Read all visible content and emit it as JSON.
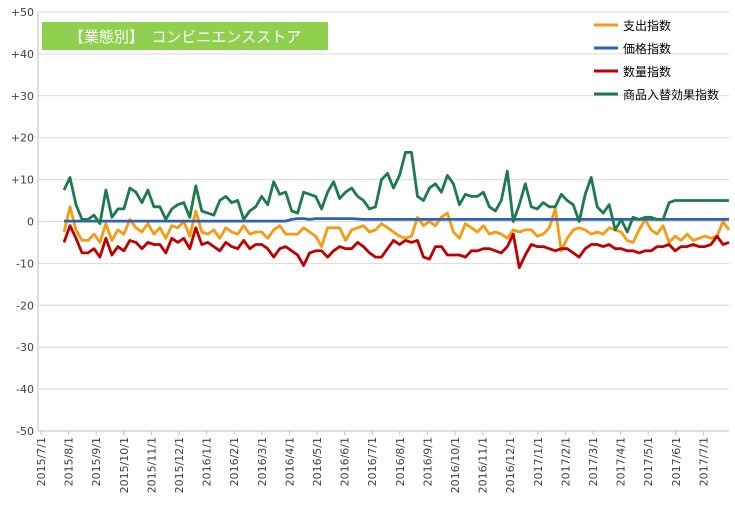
{
  "chart_data": {
    "type": "line",
    "title": "【業態別】　コンビニエンスストア",
    "title_bg_color": "#8fd14f",
    "ylim": [
      -50,
      50
    ],
    "yticks": [
      50,
      40,
      30,
      20,
      10,
      0,
      -10,
      -20,
      -30,
      -40,
      -50
    ],
    "ytick_labels": [
      "+50",
      "+40",
      "+30",
      "+20",
      "+10",
      "0",
      "-10",
      "-20",
      "-30",
      "-40",
      "-50"
    ],
    "xtick_labels": [
      "2015/7/1",
      "2015/8/1",
      "2015/9/1",
      "2015/10/1",
      "2015/11/1",
      "2015/12/1",
      "2016/1/1",
      "2016/2/1",
      "2016/3/1",
      "2016/4/1",
      "2016/5/1",
      "2016/6/1",
      "2016/7/1",
      "2016/8/1",
      "2016/9/1",
      "2016/10/1",
      "2016/11/1",
      "2016/12/1",
      "2017/1/1",
      "2017/2/1",
      "2017/3/1",
      "2017/4/1",
      "2017/5/1",
      "2017/6/1",
      "2017/7/1"
    ],
    "grid": "horizontal",
    "legend_position": "top-right",
    "series": [
      {
        "name": "支出指数",
        "color": "#f79a10",
        "values": [
          -2.5,
          3.5,
          -2,
          -4.5,
          -4.5,
          -3,
          -5,
          -0.5,
          -4.5,
          -2,
          -3,
          0.5,
          -1.5,
          -2.5,
          -0.5,
          -3,
          -1.5,
          -4,
          -1,
          -1.5,
          0,
          -3.5,
          2.5,
          -2.5,
          -3,
          -2,
          -4,
          -1.5,
          -2.5,
          -3,
          -1,
          -3,
          -2.5,
          -2.5,
          -4,
          -2,
          -1,
          -3,
          -3,
          -3,
          -1.5,
          -2.5,
          -3.5,
          -6,
          -1.5,
          -1.5,
          -1.5,
          -4.5,
          -2,
          -1.5,
          -1,
          -2.5,
          -2,
          -0.5,
          -1.5,
          -2.5,
          -3.5,
          -4,
          -3.5,
          1,
          -1,
          0,
          -1,
          1,
          2,
          -2.5,
          -4,
          -0.5,
          -1.5,
          -2.5,
          -1,
          -3,
          -2.5,
          -3,
          -4,
          -2,
          -2.5,
          -2,
          -2,
          -3.5,
          -3,
          -1.5,
          3,
          -7,
          -4,
          -2,
          -1.5,
          -2,
          -3,
          -2.5,
          -3,
          -1.5,
          -2,
          -2.5,
          -4.5,
          -5,
          -2,
          0.5,
          -2,
          -3,
          -1,
          -5,
          -3.5,
          -4.5,
          -3,
          -4.5,
          -4,
          -3.5,
          -4,
          -3.5,
          0,
          -2
        ]
      },
      {
        "name": "価格指数",
        "color": "#2e62b5",
        "values": [
          0.1,
          0.1,
          0.1,
          0.1,
          0.1,
          0.1,
          0.1,
          0.1,
          0.1,
          0.1,
          0.1,
          0.1,
          0.1,
          0.1,
          0.1,
          0.1,
          0.1,
          0.1,
          0.1,
          0.1,
          0.1,
          0.1,
          0.1,
          0.1,
          0.1,
          0.1,
          0.1,
          0.1,
          0.1,
          0.1,
          0.1,
          0.1,
          0.1,
          0.1,
          0.1,
          0.1,
          0.1,
          0.1,
          0.5,
          0.7,
          0.7,
          0.5,
          0.7,
          0.7,
          0.7,
          0.7,
          0.7,
          0.7,
          0.7,
          0.6,
          0.5,
          0.5,
          0.5,
          0.5,
          0.5,
          0.5,
          0.5,
          0.5,
          0.5,
          0.5,
          0.5,
          0.5,
          0.5,
          0.5,
          0.5,
          0.5,
          0.5,
          0.5,
          0.5,
          0.5,
          0.5,
          0.5,
          0.5,
          0.5,
          0.5,
          0.5,
          0.5,
          0.5,
          0.5,
          0.5,
          0.5,
          0.5,
          0.5,
          0.5,
          0.5,
          0.5,
          0.5,
          0.5,
          0.5,
          0.5,
          0.5,
          0.5,
          0.5,
          0.5,
          0.5,
          0.5,
          0.5,
          0.5,
          0.5,
          0.5,
          0.5,
          0.5,
          0.5,
          0.5,
          0.5,
          0.5,
          0.5,
          0.5,
          0.5,
          0.5,
          0.5,
          0.5
        ]
      },
      {
        "name": "数量指数",
        "color": "#c00000",
        "values": [
          -5,
          -1,
          -4,
          -7.5,
          -7.5,
          -6.5,
          -8.5,
          -4,
          -8,
          -6,
          -7,
          -4.5,
          -5,
          -6.5,
          -5,
          -5.5,
          -5.5,
          -7.5,
          -4,
          -5,
          -4,
          -6.5,
          -1.5,
          -5.5,
          -5,
          -6,
          -7,
          -5,
          -6,
          -6.5,
          -4.5,
          -6.5,
          -5.5,
          -5.5,
          -6.5,
          -8.5,
          -6.5,
          -6,
          -7,
          -8,
          -10.5,
          -7.5,
          -7,
          -7,
          -8.5,
          -7,
          -6,
          -6.5,
          -6.5,
          -5,
          -6,
          -7.5,
          -8.5,
          -8.5,
          -6.5,
          -4.5,
          -5.5,
          -4.5,
          -5,
          -4.5,
          -8.5,
          -9,
          -6,
          -6,
          -8,
          -8,
          -8,
          -8.5,
          -7,
          -7,
          -6.5,
          -6.5,
          -7,
          -7.5,
          -6,
          -3,
          -11,
          -8,
          -5.5,
          -6,
          -6,
          -6.5,
          -7,
          -6.5,
          -6.5,
          -7.5,
          -8.5,
          -6.5,
          -5.5,
          -5.5,
          -6,
          -5.5,
          -6.5,
          -6.5,
          -7,
          -7,
          -7.5,
          -7,
          -7,
          -6,
          -6,
          -5.5,
          -7,
          -6,
          -6,
          -5.5,
          -6,
          -6,
          -5.5,
          -3.5,
          -5.5,
          -5
        ]
      },
      {
        "name": "商品入替効果指数",
        "color": "#1e7a4c",
        "values": [
          7.5,
          10.5,
          4,
          0.5,
          0.5,
          1.5,
          -0.5,
          7.5,
          1,
          3,
          3,
          8,
          7,
          4.5,
          7.5,
          3.5,
          3.5,
          0.5,
          3,
          4,
          4.5,
          1,
          8.5,
          2.5,
          2,
          1.5,
          5,
          6,
          4.5,
          5,
          0.5,
          2.5,
          3.5,
          6,
          4,
          9.5,
          6.5,
          7,
          2.5,
          2,
          7,
          6.5,
          6,
          3,
          7,
          9.5,
          5.5,
          7,
          8,
          6,
          5,
          3,
          3.5,
          10,
          11.5,
          8,
          11,
          16.5,
          16.5,
          6,
          5,
          8,
          9,
          7,
          11,
          9,
          4,
          6.5,
          6,
          6,
          7,
          3.5,
          2.5,
          5,
          12,
          0,
          4,
          9,
          3.5,
          3,
          4.5,
          3.5,
          3.5,
          6.5,
          5,
          4,
          0,
          6.5,
          10.5,
          3.5,
          2,
          4,
          -2,
          0.5,
          -2.5,
          1,
          0.5,
          1,
          1,
          0.5,
          0.5,
          4.5,
          5,
          5,
          5,
          5,
          5,
          5,
          5,
          5,
          5,
          5
        ]
      }
    ]
  }
}
